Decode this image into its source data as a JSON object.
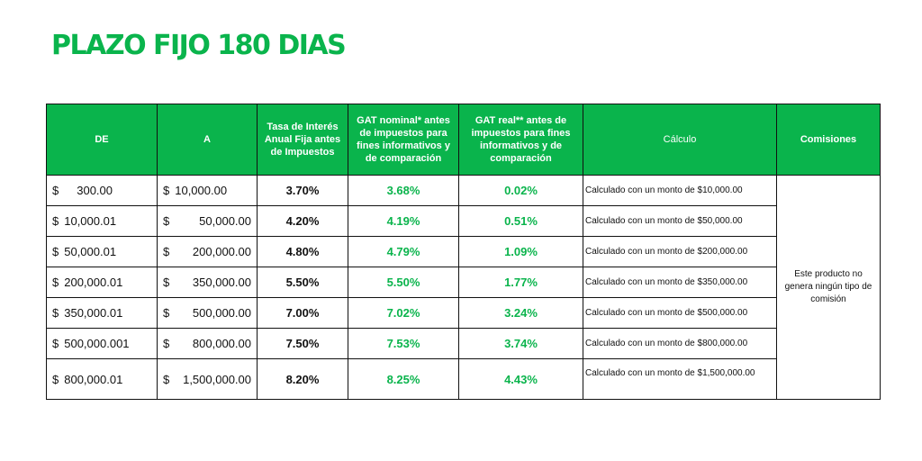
{
  "title": "PLAZO FIJO 180 DIAS",
  "headers": {
    "de": "DE",
    "a": "A",
    "tasa": "Tasa de Interés Anual Fija antes de Impuestos",
    "gat_nominal": "GAT nominal* antes de impuestos para fines informativos y de comparación",
    "gat_real": "GAT real** antes de impuestos para fines informativos y de comparación",
    "calculo": "Cálculo",
    "comisiones": "Comisiones"
  },
  "rows": [
    {
      "de_sym": "$",
      "de": "300.00",
      "a_sym": "$",
      "a": "10,000.00",
      "tasa": "3.70%",
      "gat_nominal": "3.68%",
      "gat_real": "0.02%",
      "calculo": "Calculado con un monto de $10,000.00"
    },
    {
      "de_sym": "$",
      "de": "10,000.01",
      "a_sym": "$",
      "a": "50,000.00",
      "tasa": "4.20%",
      "gat_nominal": "4.19%",
      "gat_real": "0.51%",
      "calculo": "Calculado con un monto de $50,000.00"
    },
    {
      "de_sym": "$",
      "de": "50,000.01",
      "a_sym": "$",
      "a": "200,000.00",
      "tasa": "4.80%",
      "gat_nominal": "4.79%",
      "gat_real": "1.09%",
      "calculo": "Calculado con un monto de $200,000.00"
    },
    {
      "de_sym": "$",
      "de": "200,000.01",
      "a_sym": "$",
      "a": "350,000.00",
      "tasa": "5.50%",
      "gat_nominal": "5.50%",
      "gat_real": "1.77%",
      "calculo": "Calculado con un monto de $350,000.00"
    },
    {
      "de_sym": "$",
      "de": "350,000.01",
      "a_sym": "$",
      "a": "500,000.00",
      "tasa": "7.00%",
      "gat_nominal": "7.02%",
      "gat_real": "3.24%",
      "calculo": "Calculado con un monto de $500,000.00"
    },
    {
      "de_sym": "$",
      "de": "500,000.001",
      "a_sym": "$",
      "a": "800,000.00",
      "tasa": "7.50%",
      "gat_nominal": "7.53%",
      "gat_real": "3.74%",
      "calculo": "Calculado con un monto de $800,000.00"
    },
    {
      "de_sym": "$",
      "de": "800,000.01",
      "a_sym": "$",
      "a": "1,500,000.00",
      "tasa": "8.20%",
      "gat_nominal": "8.25%",
      "gat_real": "4.43%",
      "calculo": "Calculado con un monto de $1,500,000.00"
    }
  ],
  "comisiones": "Este producto no genera ningún tipo de comisión",
  "colors": {
    "accent": "#0ab44c",
    "header_text": "#ffffff",
    "border": "#111111"
  }
}
